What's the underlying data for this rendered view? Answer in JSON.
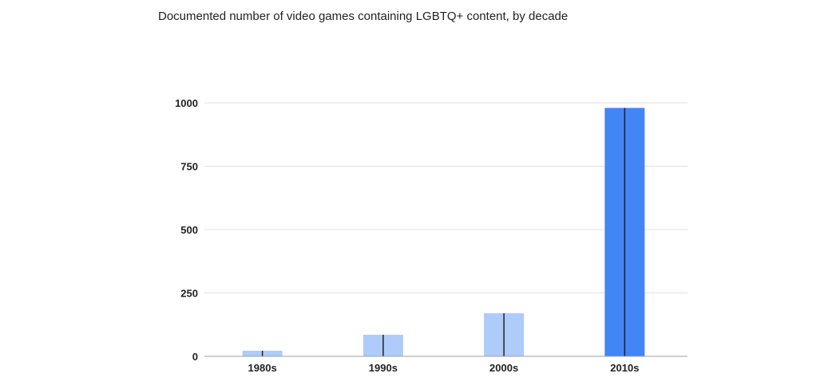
{
  "chart_data": {
    "type": "bar",
    "title": "Documented number of video games containing LGBTQ+ content, by decade",
    "categories": [
      "1980s",
      "1990s",
      "2000s",
      "2010s"
    ],
    "values": [
      22,
      85,
      170,
      980
    ],
    "ylim": [
      0,
      1000
    ],
    "yticks": [
      0,
      250,
      500,
      750,
      1000
    ],
    "grid": true,
    "colors": {
      "light_bar": "#aecbfa",
      "highlight_bar": "#4285f4",
      "divider": "#202124",
      "grid": "#e0e0e0",
      "axis": "#9aa0a6"
    },
    "highlight_index": 3
  }
}
